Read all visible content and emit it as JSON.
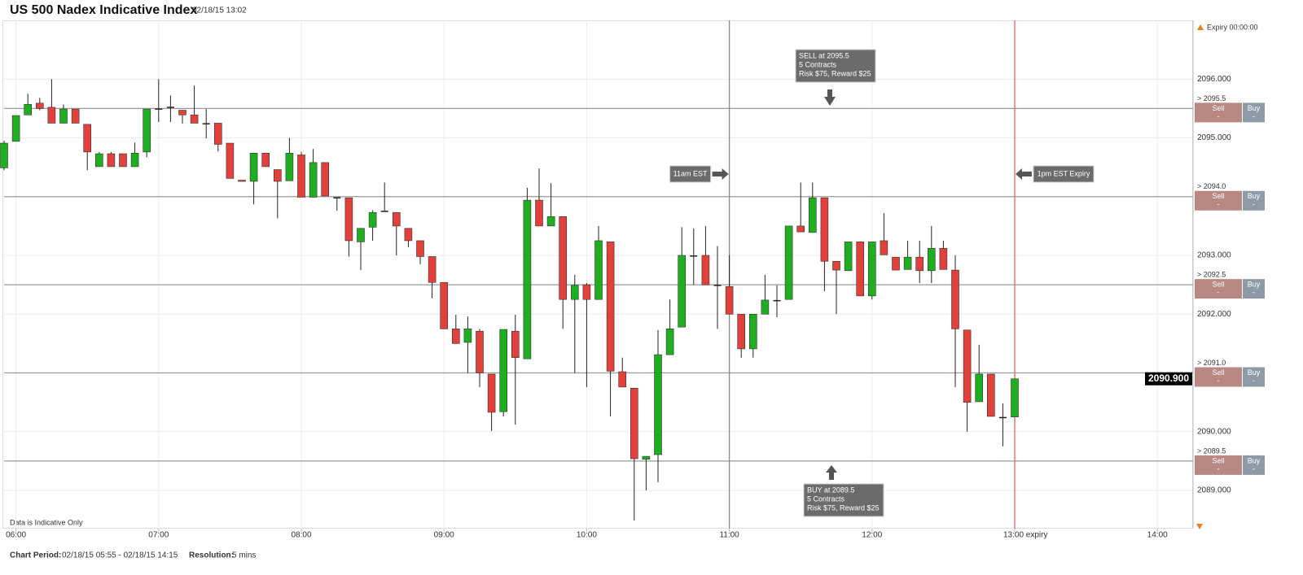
{
  "header": {
    "title": "US 500 Nadex Indicative Index",
    "timestamp": "02/18/15 13:02",
    "expiry": "Expiry 00:00:00"
  },
  "chart_data": {
    "type": "candlestick",
    "up_color": "#1fae1f",
    "down_color": "#e2403a",
    "doji_color": "#222222",
    "grid": true,
    "x": [
      "05:55",
      "06:00",
      "06:05",
      "06:10",
      "06:15",
      "06:20",
      "06:25",
      "06:30",
      "06:35",
      "06:40",
      "06:45",
      "06:50",
      "06:55",
      "07:00",
      "07:05",
      "07:10",
      "07:15",
      "07:20",
      "07:25",
      "07:30",
      "07:35",
      "07:40",
      "07:45",
      "07:50",
      "07:55",
      "08:00",
      "08:05",
      "08:10",
      "08:15",
      "08:20",
      "08:25",
      "08:30",
      "08:35",
      "08:40",
      "08:45",
      "08:50",
      "08:55",
      "09:00",
      "09:05",
      "09:10",
      "09:15",
      "09:20",
      "09:25",
      "09:30",
      "09:35",
      "09:40",
      "09:45",
      "09:50",
      "09:55",
      "10:00",
      "10:05",
      "10:10",
      "10:15",
      "10:20",
      "10:25",
      "10:30",
      "10:35",
      "10:40",
      "10:45",
      "10:50",
      "10:55",
      "11:00",
      "11:05",
      "11:10",
      "11:15",
      "11:20",
      "11:25",
      "11:30",
      "11:35",
      "11:40",
      "11:45",
      "11:50",
      "11:55",
      "12:00",
      "12:05",
      "12:10",
      "12:15",
      "12:20",
      "12:25",
      "12:30",
      "12:35",
      "12:40",
      "12:45",
      "12:50",
      "12:55",
      "13:00"
    ],
    "open": [
      2094.49,
      2094.94,
      2095.39,
      2095.59,
      2095.52,
      2095.25,
      2095.49,
      2095.23,
      2094.51,
      2094.73,
      2094.73,
      2094.51,
      2094.76,
      2095.5,
      2095.53,
      2095.47,
      2095.39,
      2095.25,
      2095.25,
      2094.91,
      2094.28,
      2094.26,
      2094.74,
      2094.46,
      2094.27,
      2094.71,
      2093.99,
      2094.58,
      2093.99,
      2093.98,
      2093.23,
      2093.48,
      2093.76,
      2093.73,
      2093.46,
      2093.25,
      2092.98,
      2092.54,
      2091.75,
      2091.52,
      2091.71,
      2090.98,
      2090.34,
      2091.71,
      2091.24,
      2093.94,
      2093.5,
      2093.66,
      2092.25,
      2092.5,
      2092.25,
      2093.23,
      2091.02,
      2090.74,
      2089.53,
      2089.61,
      2091.31,
      2091.78,
      2093,
      2093,
      2092.5,
      2092.47,
      2092,
      2091.41,
      2092,
      2092.24,
      2092.25,
      2093.5,
      2093.39,
      2093.98,
      2092.9,
      2092.74,
      2093.23,
      2092.31,
      2093.25,
      2092.97,
      2092.76,
      2092.97,
      2092.74,
      2093.12,
      2092.75,
      2091.73,
      2090.51,
      2090.98,
      2090.25,
      2090.25
    ],
    "high": [
      2094.95,
      2095.38,
      2095.75,
      2095.68,
      2096,
      2095.57,
      2095.49,
      2095.23,
      2094.76,
      2094.76,
      2094.73,
      2094.92,
      2095.49,
      2096,
      2095.72,
      2095.47,
      2095.89,
      2095.49,
      2095.25,
      2094.91,
      2094.28,
      2094.74,
      2094.74,
      2094.46,
      2095,
      2094.76,
      2094.81,
      2094.58,
      2093.99,
      2093.98,
      2093.46,
      2093.77,
      2094.24,
      2093.73,
      2093.46,
      2093.25,
      2092.98,
      2092.54,
      2091.99,
      2091.96,
      2091.75,
      2090.98,
      2091.74,
      2091.99,
      2094.15,
      2094.48,
      2094.23,
      2093.66,
      2092.67,
      2092.53,
      2093.5,
      2093.23,
      2091.26,
      2090.74,
      2089.58,
      2091.73,
      2092.25,
      2093.48,
      2093.46,
      2093.5,
      2093.16,
      2093,
      2092,
      2092,
      2092.67,
      2092.49,
      2093.5,
      2094.24,
      2094.24,
      2093.98,
      2092.9,
      2093.23,
      2093.23,
      2093.23,
      2093.72,
      2092.97,
      2093.25,
      2093.25,
      2093.5,
      2093.25,
      2093,
      2091.73,
      2091.48,
      2090.98,
      2090.48,
      2090.9
    ],
    "low": [
      2094.45,
      2094.94,
      2095.39,
      2095.47,
      2095.25,
      2095.25,
      2095.25,
      2094.45,
      2094.51,
      2094.51,
      2094.51,
      2094.51,
      2094.67,
      2095.27,
      2095.27,
      2095.24,
      2095.25,
      2094.99,
      2094.77,
      2094.31,
      2094.26,
      2093.87,
      2094.51,
      2093.63,
      2094.27,
      2093.99,
      2093.99,
      2094.01,
      2093.76,
      2092.98,
      2092.75,
      2093.25,
      2093.75,
      2093,
      2093.14,
      2092.85,
      2092.27,
      2091.75,
      2091.5,
      2091,
      2090.76,
      2090.01,
      2090.26,
      2090.12,
      2091.24,
      2093.5,
      2093.5,
      2091.75,
      2091,
      2090.76,
      2092.25,
      2090.26,
      2090.76,
      2088.49,
      2089,
      2089.14,
      2091.31,
      2091.78,
      2092.5,
      2092.5,
      2091.75,
      2092,
      2091.26,
      2091.26,
      2092,
      2091.95,
      2092.25,
      2093.4,
      2093.39,
      2092.39,
      2092,
      2092.74,
      2092.31,
      2092.25,
      2093.01,
      2092.75,
      2092.76,
      2092.53,
      2092.53,
      2092.76,
      2090.76,
      2090,
      2090.51,
      2090.26,
      2089.75,
      2090.25
    ],
    "close": [
      2094.91,
      2095.38,
      2095.57,
      2095.5,
      2095.25,
      2095.49,
      2095.25,
      2094.76,
      2094.73,
      2094.51,
      2094.51,
      2094.74,
      2095.49,
      2095.5,
      2095.53,
      2095.39,
      2095.25,
      2095.25,
      2094.89,
      2094.31,
      2094.26,
      2094.74,
      2094.51,
      2094.26,
      2094.74,
      2093.99,
      2094.58,
      2094.01,
      2093.99,
      2093.25,
      2093.46,
      2093.73,
      2093.76,
      2093.5,
      2093.25,
      2092.98,
      2092.54,
      2091.75,
      2091.5,
      2091.75,
      2091,
      2090.33,
      2091.74,
      2091.26,
      2093.94,
      2093.5,
      2093.66,
      2092.25,
      2092.49,
      2092.25,
      2093.25,
      2091.03,
      2090.76,
      2089.54,
      2089.58,
      2091.31,
      2091.75,
      2093,
      2093,
      2092.5,
      2092.5,
      2092,
      2091.41,
      2092,
      2092.24,
      2092.24,
      2093.5,
      2093.4,
      2093.98,
      2092.9,
      2092.75,
      2093.23,
      2092.31,
      2093.23,
      2093.01,
      2092.75,
      2092.97,
      2092.74,
      2093.12,
      2092.76,
      2091.75,
      2090.5,
      2090.98,
      2090.26,
      2090.25,
      2090.9
    ],
    "xlim": [
      "05:55",
      "14:15"
    ],
    "xticks": [
      "06:00",
      "07:00",
      "08:00",
      "09:00",
      "10:00",
      "11:00",
      "12:00",
      {
        "value": "13:00",
        "label": "13:00 expiry"
      },
      "14:00"
    ],
    "ylim": [
      2088.35,
      2097.0
    ],
    "yticks": [
      {
        "value": 2089,
        "label": "2089.000"
      },
      {
        "value": 2090,
        "label": "2090.000"
      },
      {
        "value": 2091,
        "label": "2091.000"
      },
      {
        "value": 2092,
        "label": "2092.000"
      },
      {
        "value": 2093,
        "label": "2093.000"
      },
      {
        "value": 2094,
        "label": "2094.000"
      },
      {
        "value": 2095,
        "label": "2095.000"
      },
      {
        "value": 2096,
        "label": "2096.000"
      }
    ],
    "last_price": {
      "value": 2090.9,
      "label": "2090.900"
    },
    "strikes": [
      {
        "value": 2095.5,
        "label": "> 2095.5"
      },
      {
        "value": 2094.0,
        "label": "> 2094.0"
      },
      {
        "value": 2092.5,
        "label": "> 2092.5"
      },
      {
        "value": 2091.0,
        "label": "> 2091.0"
      },
      {
        "value": 2089.5,
        "label": "> 2089.5"
      }
    ],
    "buttons": {
      "sell": "Sell",
      "buy": "Buy",
      "price": "-"
    },
    "vlines": [
      {
        "x": "11:00",
        "color": "#8a8a8a"
      },
      {
        "x": "13:00",
        "color": "#f06060"
      }
    ],
    "callouts": [
      "11am EST",
      "1pm EST Expiry"
    ],
    "trades": [
      {
        "lines": [
          "SELL at 2095.5",
          "5 Contracts",
          "Risk $75, Reward $25"
        ]
      },
      {
        "lines": [
          "BUY at 2089.5",
          "5 Contracts",
          "Risk $75, Reward $25"
        ]
      }
    ],
    "note": "Data is Indicative Only"
  },
  "footer": {
    "period_label": "Chart Period:",
    "period": "02/18/15 05:55 - 02/18/15 14:15",
    "resolution_label": "Resolution:",
    "resolution": "5 mins"
  }
}
